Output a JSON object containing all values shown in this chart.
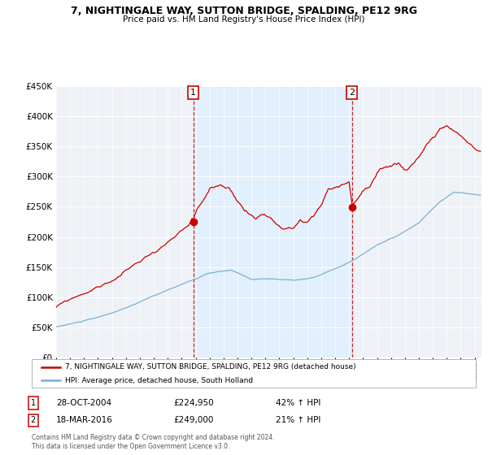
{
  "title": "7, NIGHTINGALE WAY, SUTTON BRIDGE, SPALDING, PE12 9RG",
  "subtitle": "Price paid vs. HM Land Registry's House Price Index (HPI)",
  "legend_line1": "7, NIGHTINGALE WAY, SUTTON BRIDGE, SPALDING, PE12 9RG (detached house)",
  "legend_line2": "HPI: Average price, detached house, South Holland",
  "transaction1_date": "28-OCT-2004",
  "transaction1_price": "£224,950",
  "transaction1_hpi": "42% ↑ HPI",
  "transaction2_date": "18-MAR-2016",
  "transaction2_price": "£249,000",
  "transaction2_hpi": "21% ↑ HPI",
  "footnote": "Contains HM Land Registry data © Crown copyright and database right 2024.\nThis data is licensed under the Open Government Licence v3.0.",
  "ylim": [
    0,
    450000
  ],
  "yticks": [
    0,
    50000,
    100000,
    150000,
    200000,
    250000,
    300000,
    350000,
    400000,
    450000
  ],
  "xlim_start": 1995.0,
  "xlim_end": 2025.5,
  "property_color": "#cc0000",
  "hpi_color": "#7ab0d4",
  "vline_color": "#cc0000",
  "shade_color": "#ddeeff",
  "marker1_x": 2004.83,
  "marker1_y": 224950,
  "marker2_x": 2016.21,
  "marker2_y": 249000,
  "background_color": "#ffffff",
  "plot_bg_color": "#eef2f7"
}
